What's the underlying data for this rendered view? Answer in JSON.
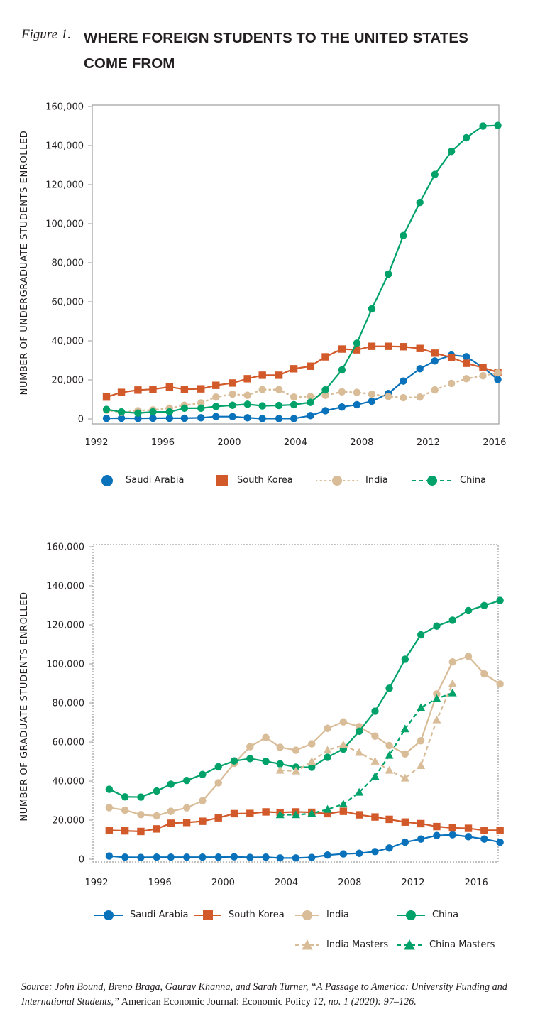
{
  "figure": {
    "label": "Figure 1.",
    "title": "WHERE FOREIGN STUDENTS TO THE UNITED STATES COME FROM"
  },
  "colors": {
    "saudi_arabia": "#0a72bb",
    "south_korea": "#d2592a",
    "india": "#d9bc98",
    "china": "#00a26a",
    "axis": "#9d9d9d",
    "text": "#231f20"
  },
  "chart_data": [
    {
      "type": "line",
      "title": "",
      "xlabel": "",
      "ylabel": "NUMBER OF UNDERGRADUATE STUDENTS ENROLLED",
      "ylim": [
        0,
        160000
      ],
      "xlim": [
        1991.8,
        2016.2
      ],
      "grid": false,
      "frame": "solid",
      "legend_position": "bottom",
      "x_ticks": [
        "1992",
        "1996",
        "2000",
        "2004",
        "2008",
        "2012",
        "2016"
      ],
      "y_ticks": [
        "0",
        "20,000",
        "40,000",
        "60,000",
        "80,000",
        "100,000",
        "120,000",
        "140,000",
        "160,000"
      ],
      "series": [
        {
          "name": "Saudi Arabia",
          "color_key": "saudi_arabia",
          "marker": "circle",
          "line": "solid",
          "x": [
            1992.6,
            1993.5,
            1994.5,
            1995.4,
            1996.4,
            1997.3,
            1998.3,
            1999.2,
            2000.2,
            2001.1,
            2002.0,
            2003.0,
            2003.9,
            2004.9,
            2005.8,
            2006.8,
            2007.7,
            2008.6,
            2009.6,
            2010.5,
            2011.5,
            2012.4,
            2013.4,
            2014.3,
            2015.3,
            2016.2
          ],
          "values": [
            300,
            400,
            300,
            400,
            400,
            400,
            600,
            1200,
            1200,
            600,
            200,
            200,
            200,
            1700,
            4200,
            6100,
            7300,
            9100,
            13000,
            19400,
            25700,
            29700,
            32700,
            31900,
            26400,
            20200
          ]
        },
        {
          "name": "South Korea",
          "color_key": "south_korea",
          "marker": "square",
          "line": "solid",
          "x": [
            1992.6,
            1993.5,
            1994.5,
            1995.4,
            1996.4,
            1997.3,
            1998.3,
            1999.2,
            2000.2,
            2001.1,
            2002.0,
            2003.0,
            2003.9,
            2004.9,
            2005.8,
            2006.8,
            2007.7,
            2008.6,
            2009.6,
            2010.5,
            2011.5,
            2012.4,
            2013.4,
            2014.3,
            2015.3,
            2016.2
          ],
          "values": [
            11200,
            13600,
            14800,
            15200,
            16400,
            15200,
            15400,
            17200,
            18400,
            20600,
            22400,
            22400,
            25700,
            27000,
            31800,
            35800,
            35400,
            37200,
            37200,
            37000,
            36100,
            33700,
            31500,
            28500,
            26300,
            23900
          ]
        },
        {
          "name": "India",
          "color_key": "india",
          "marker": "circle",
          "line": "dotted",
          "x": [
            1992.6,
            1993.5,
            1994.5,
            1995.4,
            1996.4,
            1997.3,
            1998.3,
            1999.2,
            2000.2,
            2001.1,
            2002.0,
            2003.0,
            2003.9,
            2004.9,
            2005.8,
            2006.8,
            2007.7,
            2008.6,
            2009.6,
            2010.5,
            2011.5,
            2012.4,
            2013.4,
            2014.3,
            2015.3,
            2016.2
          ],
          "values": [
            4500,
            3400,
            4200,
            4600,
            5500,
            7000,
            8200,
            11200,
            12700,
            12100,
            15000,
            15000,
            11200,
            11500,
            12100,
            13900,
            13600,
            12700,
            11500,
            10900,
            11200,
            14900,
            18200,
            20600,
            22100,
            23600
          ]
        },
        {
          "name": "China",
          "color_key": "china",
          "marker": "circle",
          "line": "solid",
          "x": [
            1992.6,
            1993.5,
            1994.5,
            1995.4,
            1996.4,
            1997.3,
            1998.3,
            1999.2,
            2000.2,
            2001.1,
            2002.0,
            2003.0,
            2003.9,
            2004.9,
            2005.8,
            2006.8,
            2007.7,
            2008.6,
            2009.6,
            2010.5,
            2011.5,
            2012.4,
            2013.4,
            2014.3,
            2015.3,
            2016.2
          ],
          "values": [
            4900,
            3600,
            3000,
            3600,
            3600,
            5500,
            5500,
            6400,
            7000,
            7500,
            6700,
            6900,
            7300,
            8500,
            14900,
            25100,
            38800,
            56400,
            74200,
            93900,
            110900,
            125200,
            137000,
            144000,
            150000,
            150300
          ]
        }
      ],
      "legend": [
        {
          "label": "Saudi Arabia",
          "color_key": "saudi_arabia",
          "marker": "circle",
          "line": "none"
        },
        {
          "label": "South Korea",
          "color_key": "south_korea",
          "marker": "square",
          "line": "none"
        },
        {
          "label": "India",
          "color_key": "india",
          "marker": "circle",
          "line": "dotted"
        },
        {
          "label": "China",
          "color_key": "china",
          "marker": "circle",
          "line": "dashed"
        }
      ]
    },
    {
      "type": "line",
      "title": "",
      "xlabel": "",
      "ylabel": "NUMBER OF GRADUATE STUDENTS ENROLLED",
      "ylim": [
        0,
        160000
      ],
      "xlim": [
        1991.8,
        2017.6
      ],
      "grid": false,
      "frame": "dotted",
      "legend_position": "bottom",
      "x_ticks": [
        "1992",
        "1996",
        "2000",
        "2004",
        "2008",
        "2012",
        "2016"
      ],
      "y_ticks": [
        "0",
        "20,000",
        "40,000",
        "60,000",
        "80,000",
        "100,000",
        "120,000",
        "140,000",
        "160,000"
      ],
      "series": [
        {
          "name": "Saudi Arabia",
          "color_key": "saudi_arabia",
          "marker": "circle",
          "line": "solid",
          "x": [
            1992.8,
            1993.8,
            1994.8,
            1995.8,
            1996.7,
            1997.7,
            1998.7,
            1999.7,
            2000.7,
            2001.7,
            2002.7,
            2003.6,
            2004.6,
            2005.6,
            2006.6,
            2007.6,
            2008.6,
            2009.6,
            2010.5,
            2011.5,
            2012.5,
            2013.5,
            2014.5,
            2015.5,
            2016.5,
            2017.5
          ],
          "values": [
            1600,
            1000,
            900,
            1000,
            1000,
            1000,
            1000,
            1000,
            1200,
            900,
            1000,
            600,
            600,
            900,
            2100,
            2700,
            3000,
            3900,
            5700,
            8700,
            10300,
            12100,
            12500,
            11500,
            10300,
            8700
          ]
        },
        {
          "name": "South Korea",
          "color_key": "south_korea",
          "marker": "square",
          "line": "solid",
          "x": [
            1992.8,
            1993.8,
            1994.8,
            1995.8,
            1996.7,
            1997.7,
            1998.7,
            1999.7,
            2000.7,
            2001.7,
            2002.7,
            2003.6,
            2004.6,
            2005.6,
            2006.6,
            2007.6,
            2008.6,
            2009.6,
            2010.5,
            2011.5,
            2012.5,
            2013.5,
            2014.5,
            2015.5,
            2016.5,
            2017.5
          ],
          "values": [
            14800,
            14500,
            14200,
            15500,
            18400,
            18800,
            19400,
            21200,
            23300,
            23400,
            24200,
            23900,
            24200,
            24000,
            23300,
            24500,
            22700,
            21600,
            20400,
            19000,
            18200,
            16700,
            16000,
            15800,
            14800,
            14800
          ]
        },
        {
          "name": "India",
          "color_key": "india",
          "marker": "circle",
          "line": "solid",
          "x": [
            1992.8,
            1993.8,
            1994.8,
            1995.8,
            1996.7,
            1997.7,
            1998.7,
            1999.7,
            2000.7,
            2001.7,
            2002.7,
            2003.6,
            2004.6,
            2005.6,
            2006.6,
            2007.6,
            2008.6,
            2009.6,
            2010.5,
            2011.5,
            2012.5,
            2013.5,
            2014.5,
            2015.5,
            2016.5,
            2017.5
          ],
          "values": [
            26400,
            25100,
            22800,
            22200,
            24500,
            26300,
            29900,
            39100,
            49100,
            57600,
            62300,
            57300,
            55800,
            59100,
            67000,
            70300,
            67900,
            63000,
            58200,
            53900,
            60600,
            84600,
            101000,
            103900,
            94900,
            89700
          ]
        },
        {
          "name": "China",
          "color_key": "china",
          "marker": "circle",
          "line": "solid",
          "x": [
            1992.8,
            1993.8,
            1994.8,
            1995.8,
            1996.7,
            1997.7,
            1998.7,
            1999.7,
            2000.7,
            2001.7,
            2002.7,
            2003.6,
            2004.6,
            2005.6,
            2006.6,
            2007.6,
            2008.6,
            2009.6,
            2010.5,
            2011.5,
            2012.5,
            2013.5,
            2014.5,
            2015.5,
            2016.5,
            2017.5
          ],
          "values": [
            35800,
            31900,
            31800,
            34900,
            38400,
            40300,
            43400,
            47300,
            50300,
            51500,
            50100,
            48800,
            47100,
            47100,
            52200,
            56400,
            65500,
            75800,
            87500,
            102400,
            114900,
            119400,
            122400,
            127300,
            129900,
            132500
          ]
        },
        {
          "name": "India Masters",
          "color_key": "india",
          "marker": "triangle",
          "line": "dashed",
          "x": [
            2003.6,
            2004.6,
            2005.6,
            2006.6,
            2007.6,
            2008.6,
            2009.6,
            2010.5,
            2011.5,
            2012.5,
            2013.5,
            2014.5
          ],
          "values": [
            45500,
            45100,
            50000,
            55800,
            58500,
            54600,
            50100,
            45500,
            41500,
            47900,
            71300,
            89900
          ]
        },
        {
          "name": "China Masters",
          "color_key": "china",
          "marker": "triangle",
          "line": "dashed",
          "x": [
            2003.6,
            2004.6,
            2005.6,
            2006.6,
            2007.6,
            2008.6,
            2009.6,
            2010.5,
            2011.5,
            2012.5,
            2013.5,
            2014.5
          ],
          "values": [
            22700,
            22700,
            23400,
            25500,
            28200,
            34200,
            42400,
            53100,
            66700,
            77600,
            82200,
            85100
          ]
        }
      ],
      "legend": [
        {
          "label": "Saudi Arabia",
          "color_key": "saudi_arabia",
          "marker": "circle",
          "line": "solid"
        },
        {
          "label": "South Korea",
          "color_key": "south_korea",
          "marker": "square",
          "line": "solid"
        },
        {
          "label": "India",
          "color_key": "india",
          "marker": "circle",
          "line": "solid"
        },
        {
          "label": "China",
          "color_key": "china",
          "marker": "circle",
          "line": "solid"
        },
        {
          "label": "India Masters",
          "color_key": "india",
          "marker": "triangle",
          "line": "dashed"
        },
        {
          "label": "China Masters",
          "color_key": "china",
          "marker": "triangle",
          "line": "dashed"
        }
      ]
    }
  ],
  "source": {
    "prefix": "Source: John Bound, Breno Braga, Gaurav Khanna, and Sarah Turner, “A Passage to America: University Funding and International Students,”",
    "journal": " American Economic Journal: Economic Policy ",
    "citation": "12, no. 1 (2020): 97–126."
  }
}
